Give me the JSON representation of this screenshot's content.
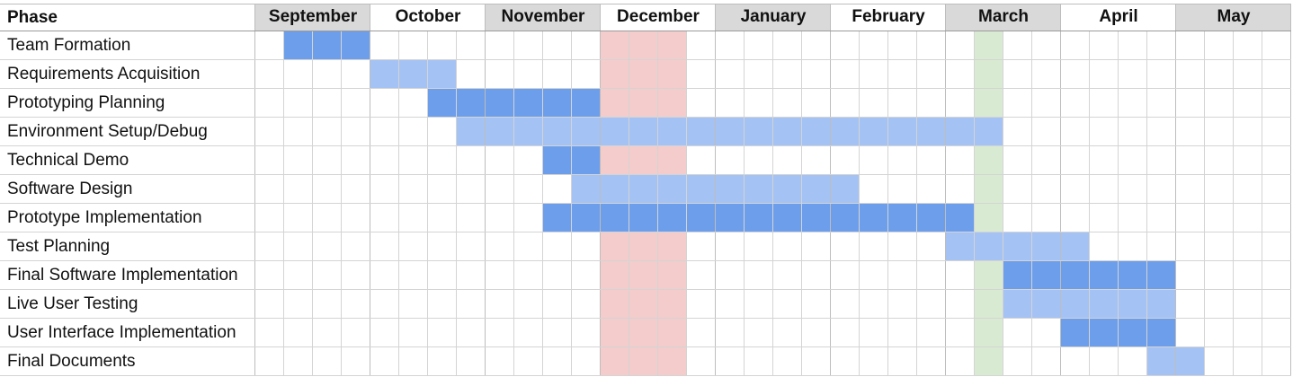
{
  "chart_data": {
    "type": "gantt",
    "phase_header": "Phase",
    "months": [
      "September",
      "October",
      "November",
      "December",
      "January",
      "February",
      "March",
      "April",
      "May"
    ],
    "shaded_months": [
      "September",
      "November",
      "January",
      "March",
      "May"
    ],
    "weeks_per_month": 4,
    "colors": {
      "dark_bar": "#6d9eeb",
      "light_bar": "#a4c2f4",
      "holiday": "#f4cccc",
      "milestone": "#d9ead3",
      "header_shade": "#d9d9d9",
      "grid": "#d4d4d4"
    },
    "highlight_columns": [
      {
        "kind": "holiday",
        "start": 12,
        "end": 15
      },
      {
        "kind": "milestone",
        "start": 25,
        "end": 26
      }
    ],
    "phases": [
      {
        "name": "Team Formation",
        "start": 1,
        "end": 4,
        "shade": "dark"
      },
      {
        "name": "Requirements Acquisition",
        "start": 4,
        "end": 7,
        "shade": "light"
      },
      {
        "name": "Prototyping Planning",
        "start": 6,
        "end": 12,
        "shade": "dark"
      },
      {
        "name": "Environment Setup/Debug",
        "start": 7,
        "end": 26,
        "shade": "light"
      },
      {
        "name": "Technical Demo",
        "start": 10,
        "end": 12,
        "shade": "dark"
      },
      {
        "name": "Software Design",
        "start": 11,
        "end": 21,
        "shade": "light"
      },
      {
        "name": "Prototype Implementation",
        "start": 10,
        "end": 25,
        "shade": "dark"
      },
      {
        "name": "Test Planning",
        "start": 24,
        "end": 29,
        "shade": "light"
      },
      {
        "name": "Final Software Implementation",
        "start": 26,
        "end": 32,
        "shade": "dark"
      },
      {
        "name": "Live User Testing",
        "start": 26,
        "end": 32,
        "shade": "light"
      },
      {
        "name": "User Interface Implementation",
        "start": 28,
        "end": 32,
        "shade": "dark"
      },
      {
        "name": "Final Documents",
        "start": 31,
        "end": 33,
        "shade": "light"
      }
    ]
  }
}
